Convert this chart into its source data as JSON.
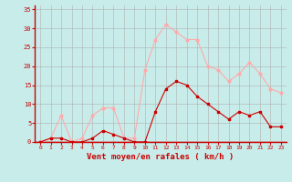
{
  "hours": [
    0,
    1,
    2,
    3,
    4,
    5,
    6,
    7,
    8,
    9,
    10,
    11,
    12,
    13,
    14,
    15,
    16,
    17,
    18,
    19,
    20,
    21,
    22,
    23
  ],
  "mean_wind": [
    0,
    1,
    1,
    0,
    0,
    1,
    3,
    2,
    1,
    0,
    0,
    8,
    14,
    16,
    15,
    12,
    10,
    8,
    6,
    8,
    7,
    8,
    4,
    4
  ],
  "gust_wind": [
    0,
    1,
    7,
    0,
    1,
    7,
    9,
    9,
    1,
    1,
    19,
    27,
    31,
    29,
    27,
    27,
    20,
    19,
    16,
    18,
    21,
    18,
    14,
    13
  ],
  "bg_color": "#c8ecea",
  "grid_color": "#b0b0b0",
  "line_color_mean": "#cc0000",
  "line_color_gust": "#ffaaaa",
  "xlabel": "Vent moyen/en rafales ( km/h )",
  "xlabel_color": "#cc0000",
  "tick_color": "#cc0000",
  "spine_color": "#cc0000",
  "ylim": [
    0,
    36
  ],
  "yticks": [
    0,
    5,
    10,
    15,
    20,
    25,
    30,
    35
  ],
  "xlim": [
    -0.5,
    23.5
  ]
}
